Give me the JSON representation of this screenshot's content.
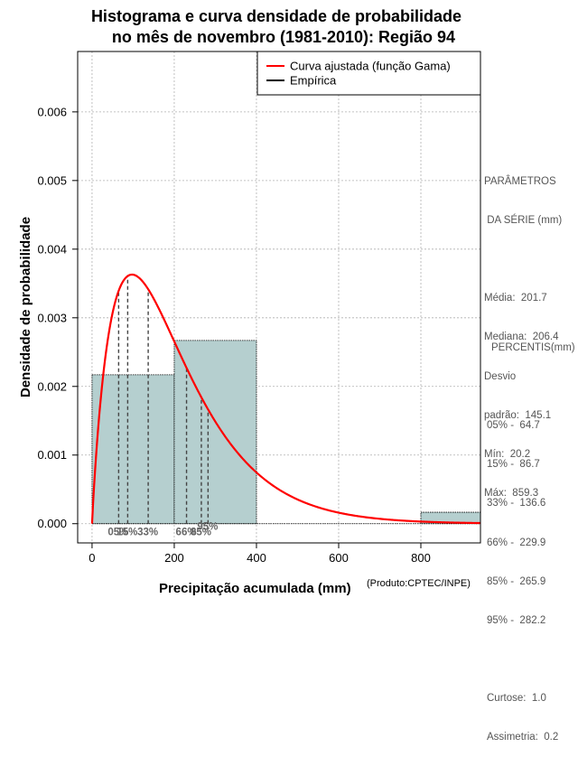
{
  "chart_data": {
    "type": "histogram",
    "title_line1": "Histograma e curva densidade de probabilidade",
    "title_line2": "no mês de novembro (1981-2010): Região 94",
    "xlabel": "Precipitação acumulada (mm)",
    "ylabel": "Densidade de probabilidade",
    "credit": "(Produto:CPTEC/INPE)",
    "xlim": [
      -35,
      945
    ],
    "ylim": [
      -0.00028,
      0.00688
    ],
    "x_ticks": [
      0,
      200,
      400,
      600,
      800
    ],
    "y_ticks": [
      0.0,
      0.001,
      0.002,
      0.003,
      0.004,
      0.005,
      0.006
    ],
    "y_tick_labels": [
      "0.000",
      "0.001",
      "0.002",
      "0.003",
      "0.004",
      "0.005",
      "0.006"
    ],
    "bins": [
      {
        "from": 0,
        "to": 200,
        "density": 0.00217
      },
      {
        "from": 200,
        "to": 400,
        "density": 0.00267
      },
      {
        "from": 400,
        "to": 600,
        "density": 0.0
      },
      {
        "from": 600,
        "to": 800,
        "density": 0.0
      },
      {
        "from": 800,
        "to": 1000,
        "density": 0.000167
      }
    ],
    "curve": {
      "name": "Curva ajustada (função Gama)",
      "shape": 1.93,
      "scale": 104.5,
      "x_start": 0,
      "x_end": 945,
      "color": "#ff0000"
    },
    "legend": [
      {
        "label": "Curva ajustada (função Gama)",
        "color": "#ff0000"
      },
      {
        "label": "Empírica",
        "color": "#000000"
      }
    ],
    "percentile_lines": [
      {
        "label": "05%",
        "value": 64.7
      },
      {
        "label": "15%",
        "value": 86.7
      },
      {
        "label": "33%",
        "value": 136.6
      },
      {
        "label": "66%",
        "value": 229.9
      },
      {
        "label": "85%",
        "value": 265.9
      },
      {
        "label": "95%",
        "value": 282.2
      }
    ],
    "percentile_label_groups": [
      {
        "text": "05%",
        "at": 64.7,
        "row": 0
      },
      {
        "text": "15%",
        "at": 86.7,
        "row": 0
      },
      {
        "text": "33%",
        "at": 136.6,
        "row": 0
      },
      {
        "text": "66%",
        "at": 229.9,
        "row": 0
      },
      {
        "text": "85%",
        "at": 265.9,
        "row": 0
      },
      {
        "text": "95%",
        "at": 282.2,
        "row": 1
      }
    ],
    "colors": {
      "bar_fill": "#b5cfcf",
      "grid": "#b0b0b0",
      "curve": "#ff0000"
    }
  },
  "parametros": {
    "header1": "PARÂMETROS",
    "header2": " DA SÉRIE (mm)",
    "media": "Média:  201.7",
    "mediana": "Mediana:  206.4",
    "desvio1": "Desvio",
    "desvio2": "padrão:  145.1",
    "min": "Mín:  20.2",
    "max": "Máx:  859.3"
  },
  "percentis": {
    "header": "PERCENTIS(mm)",
    "p05": "05% -  64.7",
    "p15": "15% -  86.7",
    "p33": "33% -  136.6",
    "p66": "66% -  229.9",
    "p85": "85% -  265.9",
    "p95": "95% -  282.2",
    "curtose": "Curtose:  1.0",
    "assimetria": "Assimetria:  0.2"
  }
}
